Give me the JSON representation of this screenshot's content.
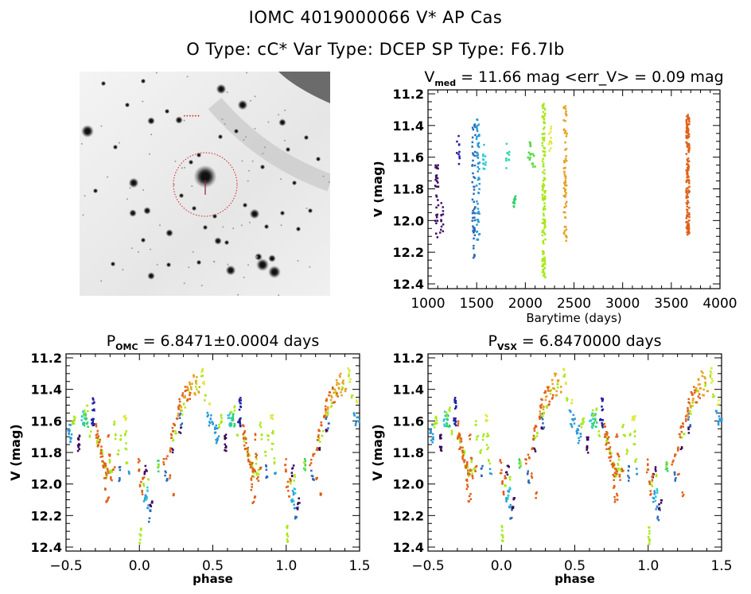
{
  "header": {
    "title": "IOMC 4019000066    V* AP Cas",
    "subtitle": "O Type: cC*   Var Type: DCEP   SP Type: F6.7Ib"
  },
  "sky_image": {
    "description": "greyscale star field finder chart with red dotted circle around target",
    "marker_color": "#d22020"
  },
  "chart_data": [
    {
      "id": "time",
      "type": "scatter",
      "title_main": "V",
      "title_sub": "med",
      "title_rest": " = 11.66 mag <err_V> = 0.09 mag",
      "xlabel": "Barytime (days)",
      "ylabel": "V (mag)",
      "xlim": [
        1000,
        4000
      ],
      "ylim": [
        12.4,
        11.2
      ],
      "xticks": [
        1000,
        1500,
        2000,
        2500,
        3000,
        3500,
        4000
      ],
      "xtick_labels": [
        "1000",
        "1500",
        "2000",
        "2500",
        "3000",
        "3500",
        "4000"
      ],
      "yticks": [
        11.2,
        11.4,
        11.6,
        11.8,
        12.0,
        12.2,
        12.4
      ],
      "ytick_labels": [
        "11.2",
        "11.4",
        "11.6",
        "11.8",
        "12.0",
        "12.2",
        "12.4"
      ],
      "clusters": [
        {
          "x": 1080,
          "vmin": 11.6,
          "vmax": 12.12,
          "color": "#3c0a5a",
          "n": 30
        },
        {
          "x": 1130,
          "vmin": 11.88,
          "vmax": 12.08,
          "color": "#4a1470",
          "n": 14
        },
        {
          "x": 1300,
          "vmin": 11.46,
          "vmax": 11.66,
          "color": "#2020a8",
          "n": 10
        },
        {
          "x": 1460,
          "vmin": 11.37,
          "vmax": 12.24,
          "color": "#2a6ab8",
          "n": 55
        },
        {
          "x": 1505,
          "vmin": 11.35,
          "vmax": 12.15,
          "color": "#2a9ad8",
          "n": 55
        },
        {
          "x": 1570,
          "vmin": 11.52,
          "vmax": 11.68,
          "color": "#30c8d8",
          "n": 12
        },
        {
          "x": 1810,
          "vmin": 11.5,
          "vmax": 11.7,
          "color": "#30d8b0",
          "n": 10
        },
        {
          "x": 1880,
          "vmin": 11.84,
          "vmax": 11.92,
          "color": "#30d070",
          "n": 10
        },
        {
          "x": 2030,
          "vmin": 11.49,
          "vmax": 11.63,
          "color": "#50d840",
          "n": 10
        },
        {
          "x": 2075,
          "vmin": 11.56,
          "vmax": 11.67,
          "color": "#60e040",
          "n": 8
        },
        {
          "x": 2180,
          "vmin": 11.26,
          "vmax": 12.37,
          "color": "#a8e818",
          "n": 140
        },
        {
          "x": 2245,
          "vmin": 11.4,
          "vmax": 11.57,
          "color": "#e0e840",
          "n": 12
        },
        {
          "x": 2400,
          "vmin": 11.27,
          "vmax": 12.13,
          "color": "#e8a020",
          "n": 70
        },
        {
          "x": 3660,
          "vmin": 11.33,
          "vmax": 12.1,
          "color": "#e06018",
          "n": 150
        }
      ]
    },
    {
      "id": "phase_omc",
      "type": "scatter",
      "title_main": "P",
      "title_sub": "OMC",
      "title_rest": " = 6.8471±0.0004 days",
      "xlabel": "phase",
      "ylabel": "V (mag)",
      "xlim": [
        -0.5,
        1.5
      ],
      "ylim": [
        12.4,
        11.2
      ],
      "xticks": [
        -0.5,
        0.0,
        0.5,
        1.0,
        1.5
      ],
      "xtick_labels": [
        "−0.5",
        "0.0",
        "0.5",
        "1.0",
        "1.5"
      ],
      "yticks": [
        11.2,
        11.4,
        11.6,
        11.8,
        12.0,
        12.2,
        12.4
      ],
      "ytick_labels": [
        "11.2",
        "11.4",
        "11.6",
        "11.8",
        "12.0",
        "12.2",
        "12.4"
      ],
      "period_days": 6.8471
    },
    {
      "id": "phase_vsx",
      "type": "scatter",
      "title_main": "P",
      "title_sub": "VSX",
      "title_rest": " = 6.8470000 days",
      "xlabel": "phase",
      "ylabel": "V (mag)",
      "xlim": [
        -0.5,
        1.5
      ],
      "ylim": [
        12.4,
        11.2
      ],
      "xticks": [
        -0.5,
        0.0,
        0.5,
        1.0,
        1.5
      ],
      "xtick_labels": [
        "−0.5",
        "0.0",
        "0.5",
        "1.0",
        "1.5"
      ],
      "yticks": [
        11.2,
        11.4,
        11.6,
        11.8,
        12.0,
        12.2,
        12.4
      ],
      "ytick_labels": [
        "11.2",
        "11.4",
        "11.6",
        "11.8",
        "12.0",
        "12.2",
        "12.4"
      ],
      "period_days": 6.847
    }
  ],
  "phase_curve": {
    "note": "folded light curve template points [phase, V] (one cycle, plotted at phase and phase+1)",
    "groups": [
      {
        "color": "#2a9ad8",
        "pts": [
          [
            0.47,
            11.62
          ],
          [
            0.48,
            11.58
          ],
          [
            0.52,
            11.64
          ],
          [
            0.53,
            11.7
          ],
          [
            0.46,
            11.55
          ],
          [
            0.92,
            11.92
          ],
          [
            0.03,
            12.1
          ],
          [
            0.05,
            12.14
          ],
          [
            0.04,
            12.06
          ],
          [
            -0.49,
            11.66
          ],
          [
            -0.48,
            11.72
          ],
          [
            0.49,
            11.6
          ],
          [
            0.51,
            11.67
          ]
        ]
      },
      {
        "color": "#2a6ab8",
        "pts": [
          [
            0.86,
            11.9
          ],
          [
            0.86,
            11.96
          ],
          [
            0.07,
            12.16
          ],
          [
            0.06,
            12.22
          ],
          [
            0.17,
            11.93
          ],
          [
            0.18,
            11.98
          ],
          [
            0.28,
            11.63
          ],
          [
            0.27,
            11.57
          ]
        ]
      },
      {
        "color": "#2020a8",
        "pts": [
          [
            0.68,
            11.47
          ],
          [
            0.68,
            11.52
          ],
          [
            0.67,
            11.6
          ],
          [
            0.68,
            11.62
          ],
          [
            -0.32,
            11.47
          ],
          [
            -0.32,
            11.6
          ]
        ]
      },
      {
        "color": "#3c0a5a",
        "pts": [
          [
            0.58,
            11.7
          ],
          [
            0.58,
            11.76
          ],
          [
            0.04,
            11.9
          ],
          [
            0.03,
            11.94
          ],
          [
            0.08,
            12.1
          ],
          [
            0.07,
            12.14
          ],
          [
            -0.42,
            11.7
          ],
          [
            -0.42,
            11.78
          ],
          [
            0.22,
            11.78
          ],
          [
            0.27,
            11.66
          ]
        ]
      },
      {
        "color": "#30c8d8",
        "pts": [
          [
            0.6,
            11.58
          ],
          [
            0.61,
            11.63
          ],
          [
            0.05,
            12.04
          ],
          [
            0.04,
            12.09
          ],
          [
            -0.38,
            11.58
          ],
          [
            -0.39,
            11.55
          ]
        ]
      },
      {
        "color": "#30d070",
        "pts": [
          [
            0.63,
            11.57
          ],
          [
            0.64,
            11.62
          ],
          [
            0.12,
            11.86
          ],
          [
            0.12,
            11.9
          ],
          [
            -0.38,
            11.62
          ],
          [
            -0.37,
            11.58
          ]
        ]
      },
      {
        "color": "#a8e818",
        "pts": [
          [
            -0.46,
            11.62
          ],
          [
            -0.45,
            11.58
          ],
          [
            -0.36,
            11.52
          ],
          [
            -0.29,
            11.72
          ],
          [
            -0.27,
            11.8
          ],
          [
            -0.25,
            11.88
          ],
          [
            -0.23,
            11.94
          ],
          [
            -0.21,
            11.86
          ],
          [
            -0.19,
            11.92
          ],
          [
            -0.17,
            11.7
          ],
          [
            -0.15,
            11.8
          ],
          [
            -0.1,
            11.68
          ],
          [
            -0.09,
            11.85
          ],
          [
            0.0,
            12.28
          ],
          [
            0.0,
            12.33
          ],
          [
            0.0,
            12.37
          ],
          [
            0.02,
            12.0
          ],
          [
            0.05,
            11.96
          ],
          [
            0.12,
            11.88
          ],
          [
            0.22,
            11.72
          ],
          [
            0.24,
            11.68
          ],
          [
            0.28,
            11.55
          ],
          [
            0.3,
            11.5
          ],
          [
            0.33,
            11.42
          ],
          [
            0.38,
            11.38
          ],
          [
            0.42,
            11.3
          ],
          [
            0.44,
            11.45
          ],
          [
            0.55,
            11.6
          ],
          [
            0.62,
            11.55
          ],
          [
            0.66,
            11.68
          ],
          [
            0.71,
            11.72
          ],
          [
            0.74,
            11.8
          ],
          [
            0.76,
            11.88
          ],
          [
            0.79,
            11.92
          ],
          [
            0.82,
            11.62
          ],
          [
            0.87,
            11.7
          ],
          [
            0.9,
            11.76
          ]
        ]
      },
      {
        "color": "#e0e840",
        "pts": [
          [
            0.42,
            11.28
          ],
          [
            0.43,
            11.35
          ],
          [
            0.47,
            11.48
          ],
          [
            -0.11,
            11.58
          ],
          [
            0.9,
            11.58
          ]
        ]
      },
      {
        "color": "#e8a020",
        "pts": [
          [
            0.3,
            11.45
          ],
          [
            0.32,
            11.4
          ],
          [
            0.34,
            11.35
          ],
          [
            0.36,
            11.3
          ],
          [
            0.38,
            11.34
          ],
          [
            0.4,
            11.4
          ],
          [
            0.26,
            11.55
          ],
          [
            0.28,
            11.52
          ],
          [
            0.35,
            11.38
          ],
          [
            0.37,
            11.42
          ]
        ]
      },
      {
        "color": "#e06018",
        "pts": [
          [
            -0.3,
            11.62
          ],
          [
            -0.29,
            11.68
          ],
          [
            -0.28,
            11.72
          ],
          [
            -0.27,
            11.78
          ],
          [
            -0.26,
            11.84
          ],
          [
            -0.24,
            11.88
          ],
          [
            -0.22,
            11.92
          ],
          [
            -0.2,
            11.96
          ],
          [
            -0.22,
            11.7
          ],
          [
            -0.24,
            12.02
          ],
          [
            -0.23,
            12.1
          ],
          [
            -0.18,
            11.9
          ],
          [
            -0.01,
            11.92
          ],
          [
            -0.01,
            11.86
          ],
          [
            0.0,
            12.0
          ],
          [
            0.01,
            12.06
          ],
          [
            0.02,
            11.96
          ],
          [
            0.16,
            11.86
          ],
          [
            0.18,
            11.82
          ],
          [
            0.2,
            11.78
          ],
          [
            0.21,
            11.7
          ],
          [
            0.22,
            11.65
          ],
          [
            0.23,
            11.62
          ],
          [
            0.25,
            11.58
          ],
          [
            0.26,
            11.52
          ],
          [
            0.27,
            11.48
          ],
          [
            0.29,
            11.42
          ],
          [
            0.31,
            11.4
          ],
          [
            0.32,
            11.48
          ],
          [
            0.34,
            11.44
          ],
          [
            0.7,
            11.7
          ],
          [
            0.71,
            11.76
          ],
          [
            0.73,
            11.82
          ],
          [
            0.75,
            11.88
          ],
          [
            0.77,
            11.92
          ],
          [
            0.79,
            11.82
          ],
          [
            0.76,
            11.96
          ],
          [
            0.78,
            12.08
          ],
          [
            0.2,
            11.95
          ],
          [
            0.23,
            12.07
          ]
        ]
      }
    ]
  }
}
